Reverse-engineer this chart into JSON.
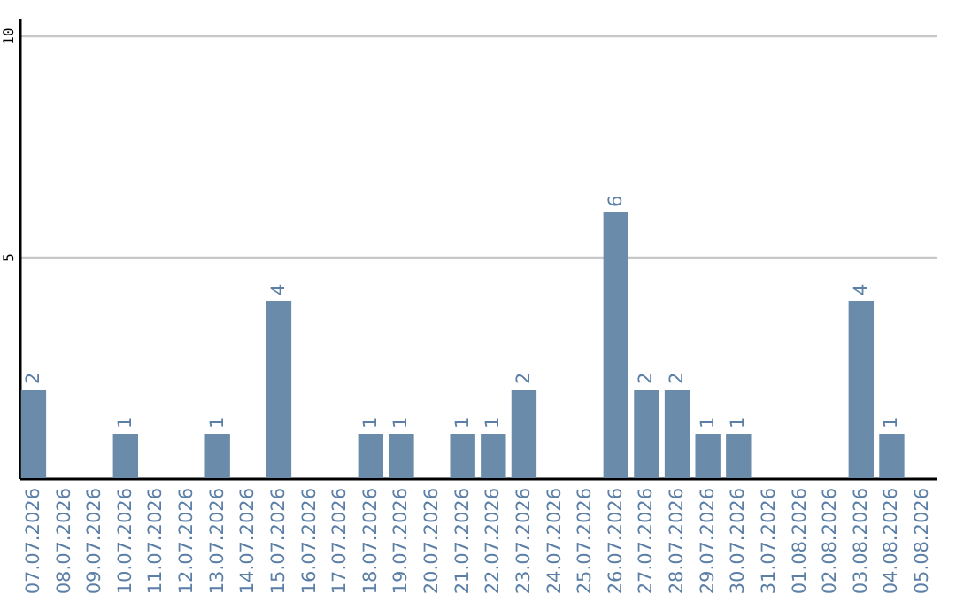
{
  "chart_data": {
    "type": "bar",
    "categories": [
      "07.07.2026",
      "08.07.2026",
      "09.07.2026",
      "10.07.2026",
      "11.07.2026",
      "12.07.2026",
      "13.07.2026",
      "14.07.2026",
      "15.07.2026",
      "16.07.2026",
      "17.07.2026",
      "18.07.2026",
      "19.07.2026",
      "20.07.2026",
      "21.07.2026",
      "22.07.2026",
      "23.07.2026",
      "24.07.2026",
      "25.07.2026",
      "26.07.2026",
      "27.07.2026",
      "28.07.2026",
      "29.07.2026",
      "30.07.2026",
      "31.07.2026",
      "01.08.2026",
      "02.08.2026",
      "03.08.2026",
      "04.08.2026",
      "05.08.2026"
    ],
    "values": [
      2,
      0,
      0,
      1,
      0,
      0,
      1,
      0,
      4,
      0,
      0,
      1,
      1,
      0,
      1,
      1,
      2,
      0,
      0,
      6,
      2,
      2,
      1,
      1,
      0,
      0,
      0,
      4,
      1,
      0
    ],
    "value_labels": [
      "2",
      null,
      null,
      "1",
      null,
      null,
      "1",
      null,
      "4",
      null,
      null,
      "1",
      "1",
      null,
      "1",
      "1",
      "2",
      null,
      null,
      "6",
      "2",
      "2",
      "1",
      "1",
      null,
      null,
      null,
      "4",
      "1",
      null
    ],
    "color": "#6a8caa",
    "ylim": [
      0,
      10.4
    ],
    "yticks": [
      5,
      10
    ],
    "grid": "y"
  }
}
